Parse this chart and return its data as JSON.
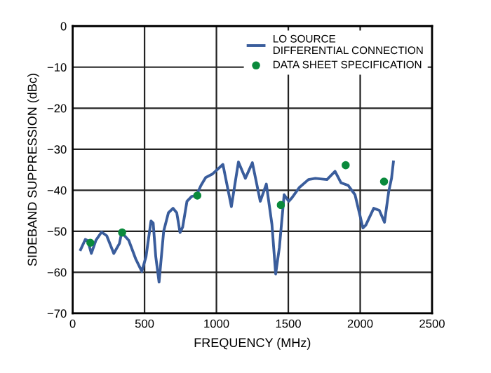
{
  "chart_data": {
    "type": "line",
    "xlabel": "FREQUENCY (MHz)",
    "ylabel": "SIDEBAND SUPPRESSION (dBc)",
    "xlim": [
      0,
      2500
    ],
    "xticks": [
      0,
      500,
      1000,
      1500,
      2000,
      2500
    ],
    "ylim": [
      -70,
      0
    ],
    "yticks": [
      -70,
      -60,
      -50,
      -40,
      -30,
      -20,
      -10,
      0
    ],
    "grid": true,
    "legend": "top right",
    "series": [
      {
        "name": "LO SOURCE\nDIFFERENTIAL CONNECTION",
        "color": "#3a5d9c",
        "marker": "none",
        "x": [
          55,
          88,
          105,
          130,
          162,
          201,
          237,
          286,
          325,
          341,
          390,
          438,
          481,
          510,
          545,
          560,
          578,
          601,
          633,
          666,
          698,
          724,
          747,
          765,
          795,
          828,
          860,
          893,
          925,
          974,
          1045,
          1104,
          1153,
          1201,
          1250,
          1305,
          1347,
          1386,
          1412,
          1438,
          1471,
          1503,
          1526,
          1575,
          1640,
          1688,
          1769,
          1825,
          1867,
          1916,
          1964,
          2019,
          2039,
          2094,
          2133,
          2169,
          2198,
          2218,
          2231
        ],
        "values": [
          -54.5,
          -52,
          -52.3,
          -55.4,
          -52.2,
          -50.2,
          -51.1,
          -55.4,
          -53,
          -50.3,
          -52.2,
          -56.7,
          -59.8,
          -56.2,
          -47.5,
          -48,
          -56.2,
          -62.4,
          -50,
          -45.5,
          -44.4,
          -45.5,
          -50.3,
          -49,
          -42.7,
          -41.5,
          -41.3,
          -38.8,
          -36.9,
          -36,
          -33.7,
          -44,
          -33.1,
          -37.1,
          -33.3,
          -42.7,
          -38.5,
          -48.3,
          -60.4,
          -53.9,
          -41.1,
          -42.7,
          -41.8,
          -39.4,
          -37.4,
          -37.1,
          -37.4,
          -35.4,
          -38.2,
          -38.8,
          -41.1,
          -49.2,
          -48.5,
          -44.4,
          -44.9,
          -47.8,
          -40.4,
          -37.1,
          -33.1
        ]
      },
      {
        "name": "DATA SHEET SPECIFICATION",
        "type": "scatter",
        "color": "#0a8a3c",
        "marker": "circle",
        "x": [
          123,
          344,
          867,
          1448,
          1899,
          2166
        ],
        "values": [
          -52.8,
          -50.3,
          -41.3,
          -43.6,
          -33.9,
          -37.9
        ]
      }
    ]
  }
}
